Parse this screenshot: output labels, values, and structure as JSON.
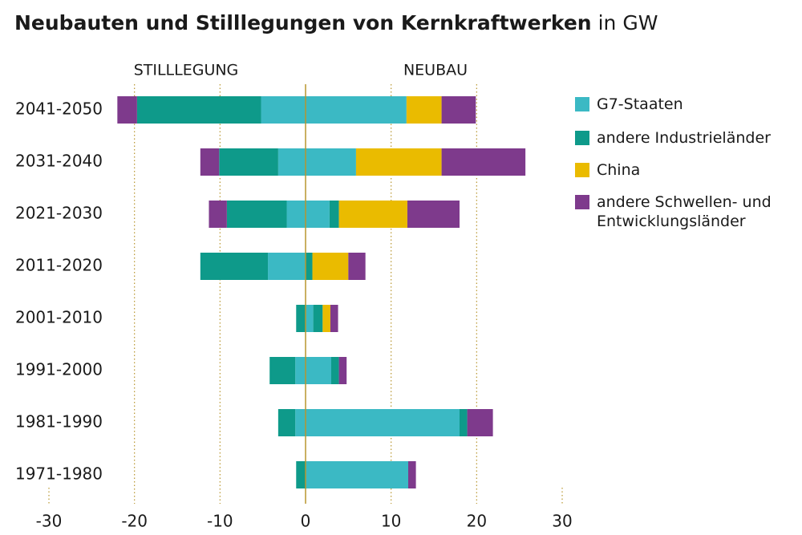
{
  "chart_data": {
    "type": "diverging-bar",
    "title": "Neubauten und Stilllegungen von Kernkraftwerken",
    "title_unit": "in GW",
    "left_label": "STILLLEGUNG",
    "right_label": "NEUBAU",
    "categories": [
      "2041-2050",
      "2031-2040",
      "2021-2030",
      "2011-2020",
      "2001-2010",
      "1991-2000",
      "1981-1990",
      "1971-1980"
    ],
    "series": [
      {
        "name": "G7-Staaten",
        "color": "#3bb9c4",
        "values": [
          11.8,
          5.9,
          2.8,
          0,
          0.9,
          3.0,
          18.0,
          12.0
        ],
        "retirements": [
          -5.2,
          -3.2,
          -2.2,
          -4.4,
          0,
          -1.2,
          -1.2,
          0
        ]
      },
      {
        "name": "andere Industrieländer",
        "color": "#0e9a8a",
        "values": [
          0,
          0,
          1.1,
          0.8,
          1.1,
          0.9,
          0.9,
          0
        ],
        "retirements": [
          -14.5,
          -6.9,
          -7.0,
          -7.9,
          -1.1,
          -3.0,
          -2.0,
          -1.1
        ]
      },
      {
        "name": "China",
        "color": "#eabb00",
        "values": [
          4.1,
          10.0,
          8.0,
          4.2,
          0.9,
          0,
          0,
          0
        ],
        "retirements": [
          0,
          0,
          0,
          0,
          0,
          0,
          0,
          0
        ]
      },
      {
        "name": "andere Schwellen- und Entwicklungsländer",
        "color": "#7e3a8c",
        "values": [
          4.0,
          9.8,
          6.1,
          2.0,
          0.9,
          0.9,
          3.0,
          0.9
        ],
        "retirements": [
          -2.3,
          -2.2,
          -2.1,
          0,
          0,
          0,
          0,
          0
        ]
      }
    ],
    "xlim": [
      -30,
      30
    ],
    "xticks": [
      -30,
      -20,
      -10,
      0,
      10,
      20,
      30
    ],
    "grid": true,
    "grid_color": "#b8962e"
  }
}
